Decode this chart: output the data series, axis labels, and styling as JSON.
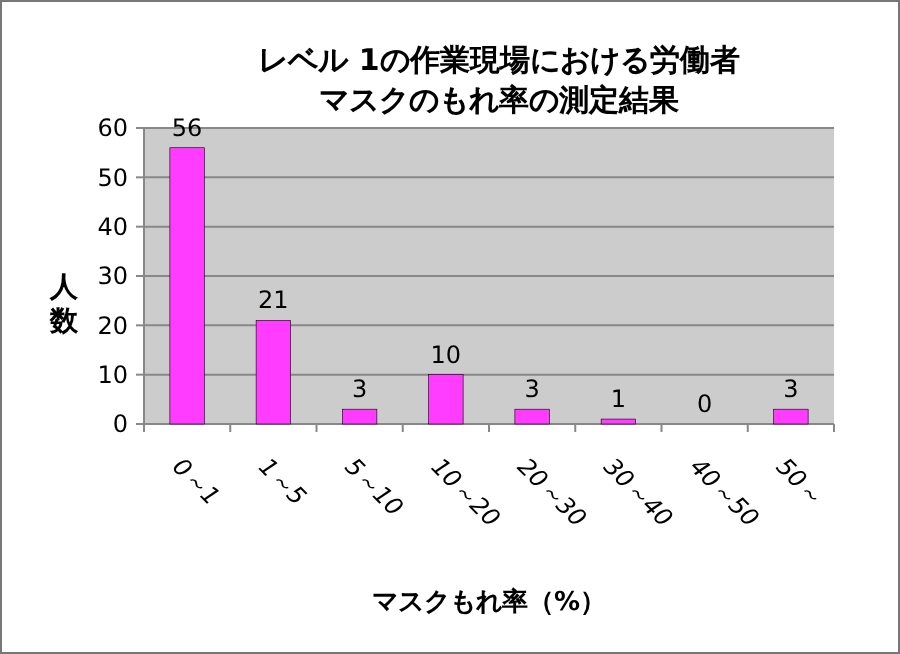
{
  "chart_data": {
    "type": "bar",
    "title": "レベル 1の作業現場における労働者",
    "subtitle": "マスクのもれ率の測定結果",
    "xlabel": "マスクもれ率（%）",
    "ylabel": "人数",
    "categories": [
      "0～1",
      "1～5",
      "5～10",
      "10～20",
      "20～30",
      "30～40",
      "40～50",
      "50～"
    ],
    "values": [
      56,
      21,
      3,
      10,
      3,
      1,
      0,
      3
    ],
    "color": "#ff3cff",
    "ylim": [
      0,
      60
    ],
    "yticks": [
      0,
      10,
      20,
      30,
      40,
      50,
      60
    ],
    "grid": "y",
    "data_labels": true
  }
}
